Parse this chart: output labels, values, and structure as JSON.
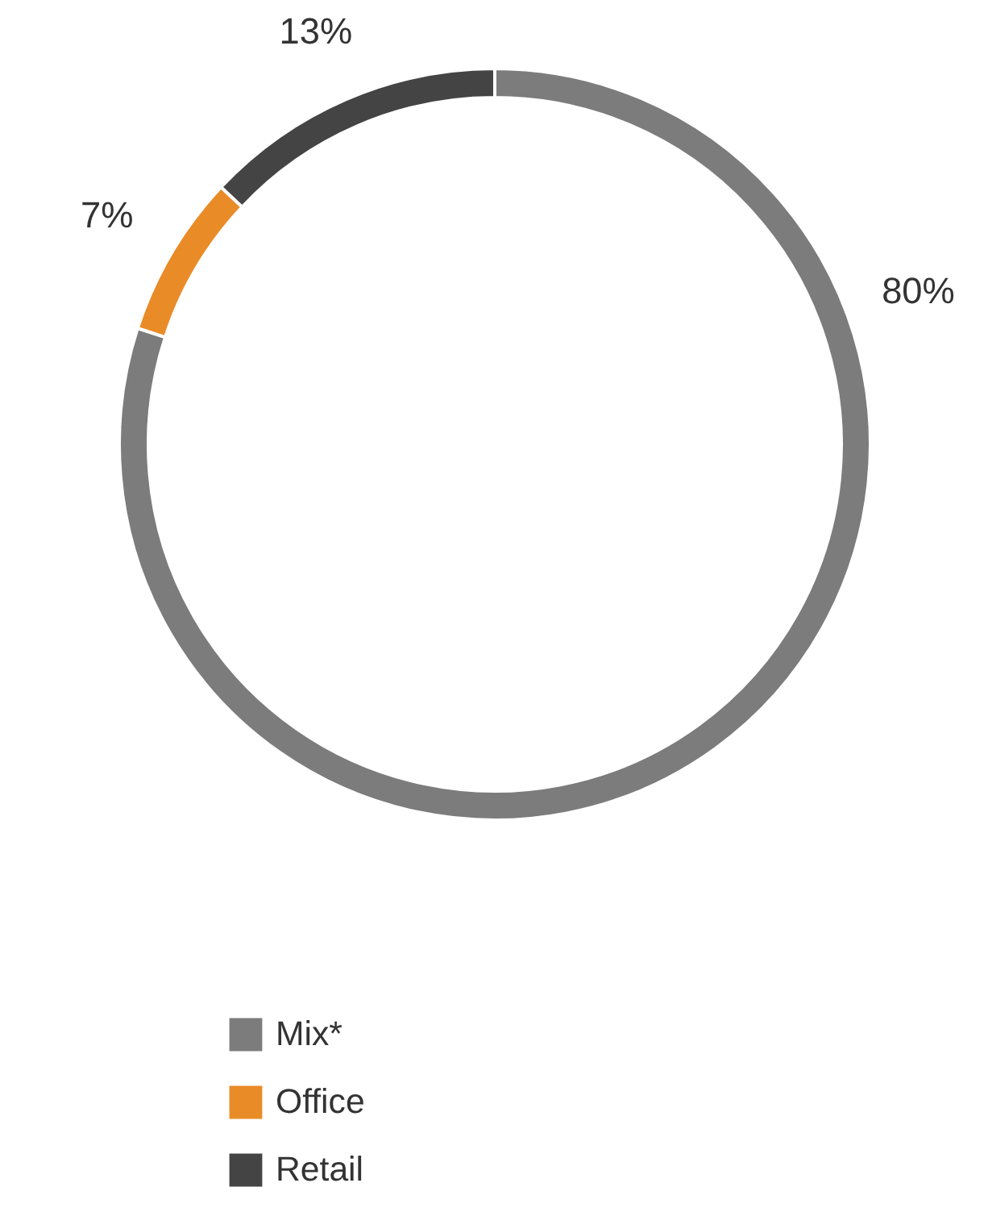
{
  "chart_data": {
    "type": "donut",
    "categories": [
      "Mix*",
      "Office",
      "Retail"
    ],
    "values": [
      80,
      7,
      13
    ],
    "colors": [
      "#7b7c7b",
      "#e98b27",
      "#444444"
    ],
    "value_labels": [
      "80%",
      "7%",
      "13%"
    ],
    "legend": "bottom"
  }
}
